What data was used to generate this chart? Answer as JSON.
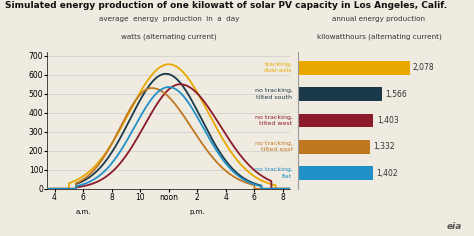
{
  "title": "Simulated energy production of one kilowatt of solar PV capacity in Los Angeles, Calif.",
  "left_title_line1": "average  energy  production  in  a  day",
  "left_title_line2": "watts (alternating current)",
  "right_title_line1": "annual energy production",
  "right_title_line2": "kilowatthours (alternating current)",
  "bg_color": "#f0ebe0",
  "curves": [
    {
      "label": "tracking,\ndual-axis",
      "color": "#e8a800",
      "peak": 655,
      "peak_hour": 12.0,
      "start_hour": 5.0,
      "end_hour": 19.5,
      "sigma_l": 2.8,
      "sigma_r": 2.8
    },
    {
      "label": "no tracking,\ntilted south",
      "color": "#1a3a4a",
      "peak": 605,
      "peak_hour": 11.8,
      "start_hour": 5.5,
      "end_hour": 18.5,
      "sigma_l": 2.5,
      "sigma_r": 2.5
    },
    {
      "label": "no tracking,\ntilted west",
      "color": "#8b1a2a",
      "peak": 550,
      "peak_hour": 12.8,
      "start_hour": 5.5,
      "end_hour": 19.2,
      "sigma_l": 2.5,
      "sigma_r": 2.8
    },
    {
      "label": "no tracking,\ntilted east",
      "color": "#c07820",
      "peak": 530,
      "peak_hour": 10.8,
      "start_hour": 5.5,
      "end_hour": 18.0,
      "sigma_l": 2.2,
      "sigma_r": 2.8
    },
    {
      "label": "no tracking,\nflat",
      "color": "#2090c8",
      "peak": 535,
      "peak_hour": 12.0,
      "start_hour": 5.5,
      "end_hour": 18.5,
      "sigma_l": 2.4,
      "sigma_r": 2.4
    }
  ],
  "bars": [
    {
      "label": "tracking,\ndual-axis",
      "value": 2078,
      "color": "#e8a800"
    },
    {
      "label": "no tracking,\ntilted south",
      "value": 1566,
      "color": "#1a3a4a"
    },
    {
      "label": "no tracking,\ntilted west",
      "value": 1403,
      "color": "#8b1a2a"
    },
    {
      "label": "no tracking,\ntilted east",
      "value": 1332,
      "color": "#c07820"
    },
    {
      "label": "no tracking,\nflat",
      "value": 1402,
      "color": "#2090c8"
    }
  ],
  "bar_values_str": [
    "2,078",
    "1,566",
    "1,403",
    "1,332",
    "1,402"
  ],
  "xtick_labels": [
    "4",
    "6",
    "8",
    "10",
    "noon",
    "2",
    "4",
    "6",
    "8"
  ],
  "xtick_hours": [
    4,
    6,
    8,
    10,
    12,
    14,
    16,
    18,
    20
  ],
  "ylim": [
    0,
    720
  ],
  "yticks": [
    0,
    100,
    200,
    300,
    400,
    500,
    600,
    700
  ],
  "xlim": [
    3.5,
    20.5
  ]
}
